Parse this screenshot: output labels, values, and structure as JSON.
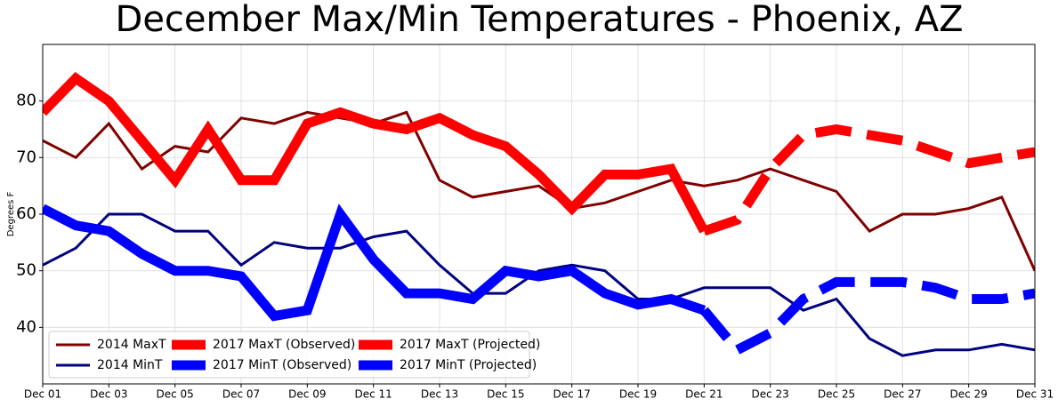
{
  "chart_data": {
    "type": "line",
    "title": "December Max/Min Temperatures - Phoenix, AZ",
    "ylabel": "Degrees F",
    "categories": [
      "Dec 01",
      null,
      "Dec 03",
      null,
      "Dec 05",
      null,
      "Dec 07",
      null,
      "Dec 09",
      null,
      "Dec 11",
      null,
      "Dec 13",
      null,
      "Dec 15",
      null,
      "Dec 17",
      null,
      "Dec 19",
      null,
      "Dec 21",
      null,
      "Dec 23",
      null,
      "Dec 25",
      null,
      "Dec 27",
      null,
      "Dec 29",
      null,
      "Dec 31"
    ],
    "ylim": [
      30,
      90
    ],
    "yticks": [
      40,
      50,
      60,
      70,
      80
    ],
    "grid": true,
    "legend": "lower left",
    "series": [
      {
        "name": "2014 MaxT",
        "color": "#800000",
        "linewidth": 3,
        "linestyle": "solid",
        "values": [
          73,
          70,
          76,
          68,
          72,
          71,
          77,
          76,
          78,
          77,
          76,
          78,
          66,
          63,
          64,
          65,
          61,
          62,
          64,
          66,
          65,
          66,
          68,
          66,
          64,
          57,
          60,
          60,
          61,
          63,
          50
        ]
      },
      {
        "name": "2014 MinT",
        "color": "#000080",
        "linewidth": 3,
        "linestyle": "solid",
        "values": [
          51,
          54,
          60,
          60,
          57,
          57,
          51,
          55,
          54,
          54,
          56,
          57,
          51,
          46,
          46,
          50,
          51,
          50,
          45,
          45,
          47,
          47,
          47,
          43,
          45,
          38,
          35,
          36,
          36,
          37,
          36
        ]
      },
      {
        "name": "2017 MaxT (Observed)",
        "color": "#ff0000",
        "linewidth": 11,
        "linestyle": "solid",
        "values": [
          78,
          84,
          80,
          73,
          66,
          75,
          66,
          66,
          76,
          78,
          76,
          75,
          77,
          74,
          72,
          67,
          61,
          67,
          67,
          68,
          57,
          null,
          null,
          null,
          null,
          null,
          null,
          null,
          null,
          null,
          null
        ]
      },
      {
        "name": "2017 MinT (Observed)",
        "color": "#0000ff",
        "linewidth": 11,
        "linestyle": "solid",
        "values": [
          61,
          58,
          57,
          53,
          50,
          50,
          49,
          42,
          43,
          60,
          52,
          46,
          46,
          45,
          50,
          49,
          50,
          46,
          44,
          45,
          43,
          null,
          null,
          null,
          null,
          null,
          null,
          null,
          null,
          null,
          null
        ]
      },
      {
        "name": "2017 MaxT (Projected)",
        "color": "#ff0000",
        "linewidth": 11,
        "linestyle": "dashed",
        "values": [
          null,
          null,
          null,
          null,
          null,
          null,
          null,
          null,
          null,
          null,
          null,
          null,
          null,
          null,
          null,
          null,
          null,
          null,
          null,
          null,
          57,
          59,
          68,
          74,
          75,
          74,
          73,
          71,
          69,
          70,
          71
        ]
      },
      {
        "name": "2017 MinT (Projected)",
        "color": "#0000ff",
        "linewidth": 11,
        "linestyle": "dashed",
        "values": [
          null,
          null,
          null,
          null,
          null,
          null,
          null,
          null,
          null,
          null,
          null,
          null,
          null,
          null,
          null,
          null,
          null,
          null,
          null,
          null,
          43,
          36,
          39,
          45,
          48,
          48,
          48,
          47,
          45,
          45,
          46
        ]
      }
    ]
  }
}
